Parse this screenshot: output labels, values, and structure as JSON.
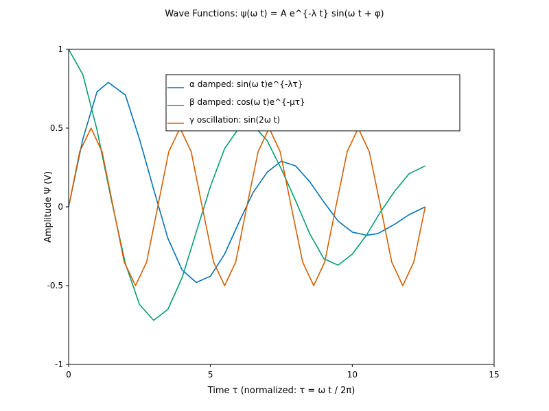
{
  "chart_data": {
    "type": "line",
    "title": "Wave Functions: ψ(ω t) = A e^{-λ t} sin(ω t + φ)",
    "xlabel": "Time τ (normalized: τ = ω t / 2π)",
    "ylabel": "Amplitude Ψ (V)",
    "xlim": [
      0,
      15
    ],
    "ylim": [
      -1,
      1
    ],
    "xticks": [
      0,
      5,
      10,
      15
    ],
    "xtick_labels": [
      "0",
      "5",
      "10",
      "15"
    ],
    "yticks": [
      -1,
      -0.5,
      0,
      0.5,
      1
    ],
    "ytick_labels": [
      "-1",
      "-0.5",
      "0",
      "0.5",
      "1"
    ],
    "grid": false,
    "legend_position": "top-center",
    "series": [
      {
        "name": "α damped: sin(ω t)e^{-λτ}",
        "color": "#0072b2",
        "x": [
          0,
          0.5,
          1,
          1.4,
          2,
          2.5,
          3,
          3.5,
          4,
          4.5,
          5,
          5.5,
          6,
          6.5,
          7,
          7.5,
          8,
          8.5,
          9,
          9.5,
          10,
          10.5,
          10.9,
          11.5,
          12,
          12.57
        ],
        "y": [
          0,
          0.43,
          0.73,
          0.79,
          0.71,
          0.43,
          0.11,
          -0.2,
          -0.4,
          -0.48,
          -0.44,
          -0.3,
          -0.1,
          0.09,
          0.22,
          0.29,
          0.26,
          0.16,
          0.03,
          -0.09,
          -0.16,
          -0.18,
          -0.17,
          -0.11,
          -0.05,
          0
        ]
      },
      {
        "name": "β damped: cos(ω t)e^{-μτ}",
        "color": "#009e73",
        "x": [
          0,
          0.5,
          1,
          1.5,
          2,
          2.5,
          3,
          3.5,
          4,
          4.5,
          5,
          5.5,
          6,
          6.5,
          7,
          7.5,
          8,
          8.5,
          9,
          9.5,
          10,
          10.5,
          11,
          11.5,
          12,
          12.57
        ],
        "y": [
          1,
          0.84,
          0.49,
          0.05,
          -0.36,
          -0.62,
          -0.72,
          -0.65,
          -0.45,
          -0.16,
          0.13,
          0.37,
          0.5,
          0.52,
          0.42,
          0.24,
          0.04,
          -0.17,
          -0.33,
          -0.37,
          -0.3,
          -0.18,
          -0.03,
          0.1,
          0.21,
          0.26
        ]
      },
      {
        "name": "γ oscillation: sin(2ω t)",
        "color": "#d55e00",
        "x": [
          0,
          0.39,
          0.79,
          1.18,
          1.57,
          1.96,
          2.36,
          2.75,
          3.14,
          3.53,
          3.93,
          4.32,
          4.71,
          5.11,
          5.5,
          5.89,
          6.28,
          6.68,
          7.07,
          7.46,
          7.85,
          8.25,
          8.64,
          9.03,
          9.42,
          9.82,
          10.21,
          10.6,
          11.0,
          11.39,
          11.78,
          12.17,
          12.57
        ],
        "y": [
          0,
          0.35,
          0.5,
          0.35,
          0,
          -0.35,
          -0.5,
          -0.35,
          0,
          0.35,
          0.5,
          0.35,
          0,
          -0.35,
          -0.5,
          -0.35,
          0,
          0.35,
          0.5,
          0.35,
          0,
          -0.35,
          -0.5,
          -0.35,
          0,
          0.35,
          0.5,
          0.35,
          0,
          -0.35,
          -0.5,
          -0.35,
          0
        ]
      }
    ]
  }
}
